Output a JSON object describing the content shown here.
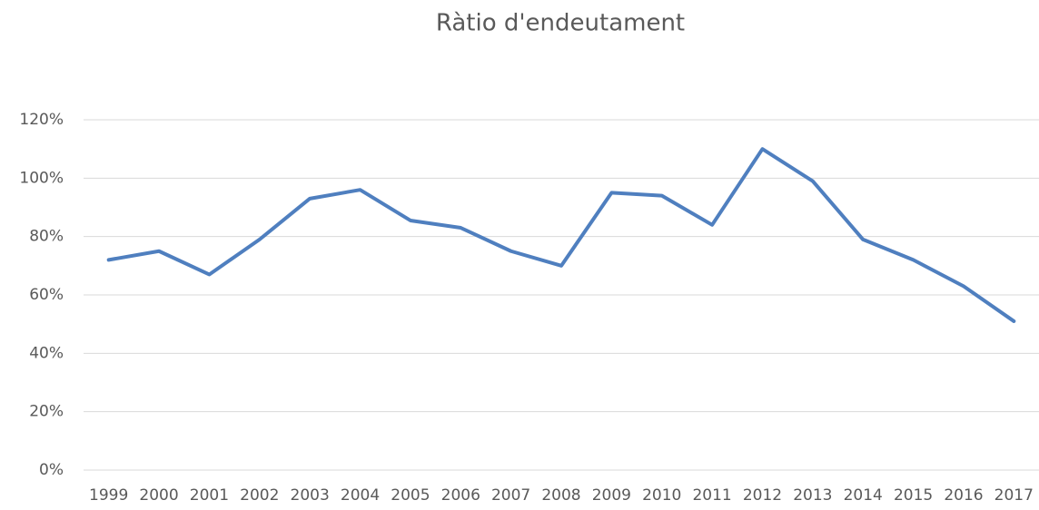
{
  "chart_data": {
    "type": "line",
    "title": "Ràtio d'endeutament",
    "categories": [
      "1999",
      "2000",
      "2001",
      "2002",
      "2003",
      "2004",
      "2005",
      "2006",
      "2007",
      "2008",
      "2009",
      "2010",
      "2011",
      "2012",
      "2013",
      "2014",
      "2015",
      "2016",
      "2017"
    ],
    "series": [
      {
        "name": "Ràtio d'endeutament",
        "color": "#4f7fbf",
        "values": [
          72,
          75,
          67,
          79,
          93,
          96,
          85.5,
          83,
          75,
          70,
          95,
          94,
          84,
          110,
          99,
          79,
          72,
          63,
          51
        ]
      }
    ],
    "ylim": [
      0,
      120
    ],
    "yticks": [
      {
        "value": 0,
        "label": "0%"
      },
      {
        "value": 20,
        "label": "20%"
      },
      {
        "value": 40,
        "label": "40%"
      },
      {
        "value": 60,
        "label": "60%"
      },
      {
        "value": 80,
        "label": "80%"
      },
      {
        "value": 100,
        "label": "100%"
      },
      {
        "value": 120,
        "label": "120%"
      }
    ],
    "grid": true
  }
}
